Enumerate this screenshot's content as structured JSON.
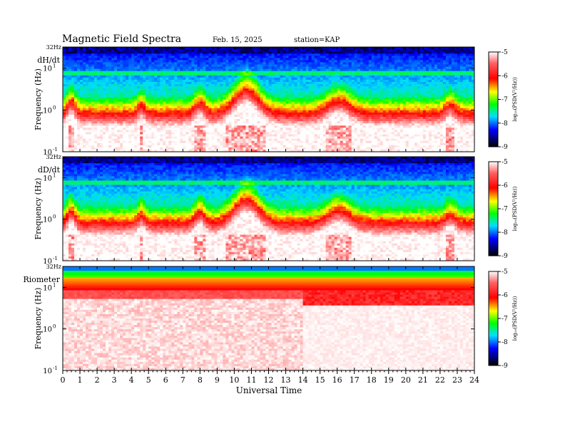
{
  "header": {
    "title": "Magnetic  Field  Spectra",
    "date": "Feb. 15, 2025",
    "station": "station=KAP"
  },
  "chart_data": {
    "type": "heatmap",
    "xlabel": "Universal Time",
    "x_ticks": [
      "0",
      "1",
      "2",
      "3",
      "4",
      "5",
      "6",
      "7",
      "8",
      "9",
      "10",
      "11",
      "12",
      "13",
      "14",
      "15",
      "16",
      "17",
      "18",
      "19",
      "20",
      "21",
      "22",
      "23",
      "24"
    ],
    "xlim": [
      0,
      24
    ],
    "y_scale": "log",
    "colorscale": [
      "#000000",
      "#0000ff",
      "#00e0ff",
      "#00ff00",
      "#ffff00",
      "#ff0000",
      "#ffffff"
    ],
    "panels": [
      {
        "name": "dH/dt",
        "ylabel": "Frequency  (Hz)",
        "top_label": "32Hz",
        "y_ticks": [
          {
            "base": "10",
            "exp": "1",
            "value": 10
          },
          {
            "base": "10",
            "exp": "0",
            "value": 1
          },
          {
            "base": "10",
            "exp": "-1",
            "value": 0.1
          }
        ],
        "colorbar": {
          "ticks": [
            "-5",
            "-6",
            "-7",
            "-8",
            "-9"
          ],
          "label": "log₁₀(PSD(V²/Hz))"
        }
      },
      {
        "name": "dD/dt",
        "ylabel": "Frequency  (Hz)",
        "top_label": "32Hz",
        "y_ticks": [
          {
            "base": "10",
            "exp": "1",
            "value": 10
          },
          {
            "base": "10",
            "exp": "0",
            "value": 1
          },
          {
            "base": "10",
            "exp": "-1",
            "value": 0.1
          }
        ],
        "colorbar": {
          "ticks": [
            "-5",
            "-6",
            "-7",
            "-8",
            "-9"
          ],
          "label": "log₁₀(PSD(V²/Hz))"
        }
      },
      {
        "name": "Riometer",
        "ylabel": "Frequency  (Hz)",
        "top_label": "32Hz",
        "y_ticks": [
          {
            "base": "10",
            "exp": "1",
            "value": 10
          },
          {
            "base": "10",
            "exp": "0",
            "value": 1
          },
          {
            "base": "10",
            "exp": "-1",
            "value": 0.1
          }
        ],
        "colorbar": {
          "ticks": [
            "-5",
            "-6",
            "-7",
            "-8",
            "-9"
          ],
          "label": "log₁₀(PSD(V²/Hz))"
        }
      }
    ]
  }
}
